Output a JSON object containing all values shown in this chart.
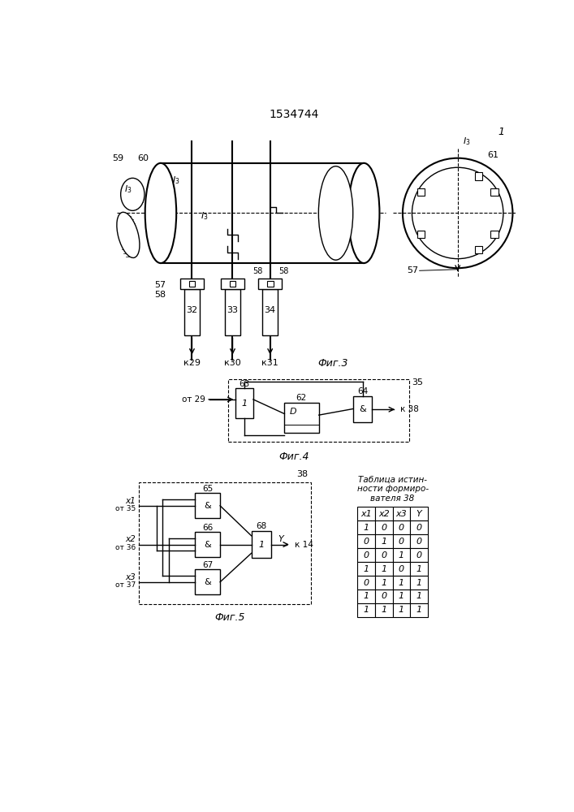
{
  "title": "1534744",
  "bg_color": "#ffffff",
  "fig3_label": "Фиг.3",
  "fig4_label": "Фиг.4",
  "fig5_label": "Фиг.5",
  "table_title": "Таблица истин-\nности формиро-\nвателя 38",
  "table_headers": [
    "х1",
    "х2",
    "х3",
    "Y"
  ],
  "table_data": [
    [
      "1",
      "0",
      "0",
      "0"
    ],
    [
      "0",
      "1",
      "0",
      "0"
    ],
    [
      "0",
      "0",
      "1",
      "0"
    ],
    [
      "1",
      "1",
      "0",
      "1"
    ],
    [
      "0",
      "1",
      "1",
      "1"
    ],
    [
      "1",
      "0",
      "1",
      "1"
    ],
    [
      "1",
      "1",
      "1",
      "1"
    ]
  ]
}
